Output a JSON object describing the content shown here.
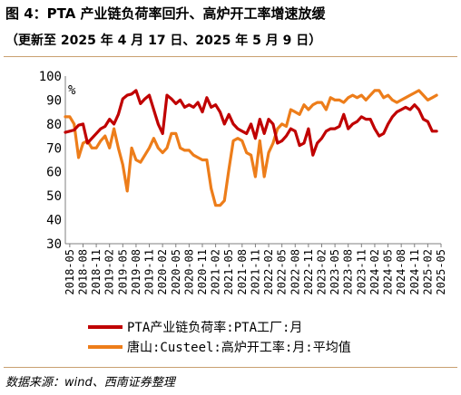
{
  "header": {
    "title": "图 4：PTA 产业链负荷率回升、高炉开工率增速放缓",
    "subtitle": "（更新至 2025 年 4 月 17 日、2025 年 5 月 9 日）"
  },
  "footer": {
    "source": "数据来源：wind、西南证券整理"
  },
  "colors": {
    "series1": "#c00000",
    "series2": "#ed7d1a",
    "rule": "#c9a070",
    "axis": "#7f7f7f"
  },
  "chart_data": {
    "type": "line",
    "unit_label": "%",
    "ylim": [
      30,
      100
    ],
    "yticks": [
      30,
      40,
      50,
      60,
      70,
      80,
      90,
      100
    ],
    "xlim": [
      "2018-04",
      "2025-05"
    ],
    "xticks": [
      "2018-05",
      "2018-08",
      "2018-11",
      "2019-02",
      "2019-05",
      "2019-08",
      "2019-11",
      "2020-02",
      "2020-05",
      "2020-08",
      "2020-11",
      "2021-02",
      "2021-05",
      "2021-08",
      "2021-11",
      "2022-02",
      "2022-05",
      "2022-08",
      "2022-11",
      "2023-02",
      "2023-05",
      "2023-08",
      "2023-11",
      "2024-02",
      "2024-05",
      "2024-08",
      "2024-11",
      "2025-02",
      "2025-05"
    ],
    "grid": false,
    "legend_position": "bottom",
    "series": [
      {
        "name": "PTA产业链负荷率:PTA工厂:月",
        "x": [
          "2018-04",
          "2018-05",
          "2018-06",
          "2018-07",
          "2018-08",
          "2018-09",
          "2018-10",
          "2018-11",
          "2018-12",
          "2019-01",
          "2019-02",
          "2019-03",
          "2019-04",
          "2019-05",
          "2019-06",
          "2019-07",
          "2019-08",
          "2019-09",
          "2019-10",
          "2019-11",
          "2019-12",
          "2020-01",
          "2020-02",
          "2020-03",
          "2020-04",
          "2020-05",
          "2020-06",
          "2020-07",
          "2020-08",
          "2020-09",
          "2020-10",
          "2020-11",
          "2020-12",
          "2021-01",
          "2021-02",
          "2021-03",
          "2021-04",
          "2021-05",
          "2021-06",
          "2021-07",
          "2021-08",
          "2021-09",
          "2021-10",
          "2021-11",
          "2021-12",
          "2022-01",
          "2022-02",
          "2022-03",
          "2022-04",
          "2022-05",
          "2022-06",
          "2022-07",
          "2022-08",
          "2022-09",
          "2022-10",
          "2022-11",
          "2022-12",
          "2023-01",
          "2023-02",
          "2023-03",
          "2023-04",
          "2023-05",
          "2023-06",
          "2023-07",
          "2023-08",
          "2023-09",
          "2023-10",
          "2023-11",
          "2023-12",
          "2024-01",
          "2024-02",
          "2024-03",
          "2024-04",
          "2024-05",
          "2024-06",
          "2024-07",
          "2024-08",
          "2024-09",
          "2024-10",
          "2024-11",
          "2024-12",
          "2025-01",
          "2025-02",
          "2025-03",
          "2025-04"
        ],
        "values": [
          76.5,
          77,
          77.5,
          79.5,
          80,
          72,
          74,
          76,
          78,
          79,
          82,
          80,
          84,
          90.5,
          92,
          92.5,
          94,
          88.5,
          90.5,
          92,
          86,
          80,
          76,
          92,
          90.5,
          88.5,
          90,
          87,
          88,
          87,
          89,
          85,
          91,
          87,
          88,
          85,
          80,
          84,
          80,
          78,
          77,
          76,
          80,
          74,
          82,
          76,
          82,
          80,
          72,
          73,
          75,
          78,
          77,
          71,
          72,
          78,
          67,
          72,
          74,
          77,
          78,
          78,
          79,
          84,
          78,
          80,
          81,
          83,
          82,
          82,
          78,
          75,
          76,
          80,
          83,
          85,
          86,
          87,
          86,
          88,
          86,
          82,
          81,
          77,
          77
        ]
      },
      {
        "name": "唐山:Custeel:高炉开工率:月:平均值",
        "x": [
          "2018-04",
          "2018-05",
          "2018-06",
          "2018-07",
          "2018-08",
          "2018-09",
          "2018-10",
          "2018-11",
          "2018-12",
          "2019-01",
          "2019-02",
          "2019-03",
          "2019-04",
          "2019-05",
          "2019-06",
          "2019-07",
          "2019-08",
          "2019-09",
          "2019-10",
          "2019-11",
          "2019-12",
          "2020-01",
          "2020-02",
          "2020-03",
          "2020-04",
          "2020-05",
          "2020-06",
          "2020-07",
          "2020-08",
          "2020-09",
          "2020-10",
          "2020-11",
          "2020-12",
          "2021-01",
          "2021-02",
          "2021-03",
          "2021-04",
          "2021-05",
          "2021-06",
          "2021-07",
          "2021-08",
          "2021-09",
          "2021-10",
          "2021-11",
          "2021-12",
          "2022-01",
          "2022-02",
          "2022-03",
          "2022-04",
          "2022-05",
          "2022-06",
          "2022-07",
          "2022-08",
          "2022-09",
          "2022-10",
          "2022-11",
          "2022-12",
          "2023-01",
          "2023-02",
          "2023-03",
          "2023-04",
          "2023-05",
          "2023-06",
          "2023-07",
          "2023-08",
          "2023-09",
          "2023-10",
          "2023-11",
          "2023-12",
          "2024-01",
          "2024-02",
          "2024-03",
          "2024-04",
          "2024-05",
          "2024-06",
          "2024-07",
          "2024-08",
          "2024-09",
          "2024-10",
          "2024-11",
          "2024-12",
          "2025-01",
          "2025-02",
          "2025-03",
          "2025-04"
        ],
        "values": [
          83,
          83,
          80,
          66,
          72,
          73,
          70,
          70,
          73,
          75,
          70,
          78,
          70,
          63,
          52,
          70,
          65,
          64,
          67,
          70,
          74,
          70,
          68,
          70,
          76,
          76,
          70,
          69,
          69,
          67,
          66,
          65,
          65,
          53,
          46,
          46,
          48,
          61,
          73,
          74,
          73,
          68,
          67,
          58,
          73,
          58,
          68,
          72,
          78,
          80,
          79,
          86,
          85,
          84,
          88,
          86,
          88,
          89,
          89,
          86,
          91,
          90,
          90,
          89,
          91,
          92,
          91,
          92,
          90,
          92,
          94,
          94,
          91,
          92,
          90,
          89,
          90,
          91,
          92,
          93,
          94,
          92,
          90,
          91,
          92
        ]
      }
    ]
  }
}
